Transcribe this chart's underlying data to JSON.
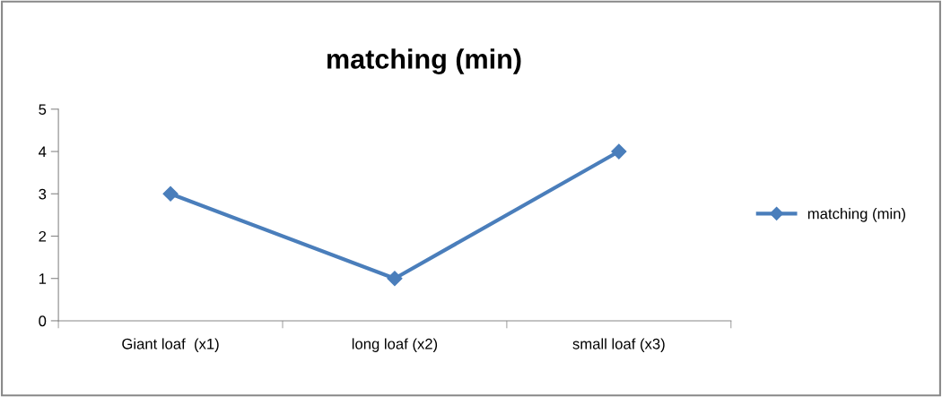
{
  "chart_data": {
    "type": "line",
    "title": "matching (min)",
    "categories": [
      "Giant loaf  (x1)",
      "long loaf (x2)",
      "small loaf (x3)"
    ],
    "series": [
      {
        "name": "matching (min)",
        "color": "#4a7ebb",
        "values": [
          3,
          1,
          4
        ]
      }
    ],
    "ylim": [
      0,
      5
    ],
    "yticks": [
      0,
      1,
      2,
      3,
      4,
      5
    ],
    "grid": false,
    "legend": "right",
    "marker": "diamond",
    "line_style": "solid"
  }
}
